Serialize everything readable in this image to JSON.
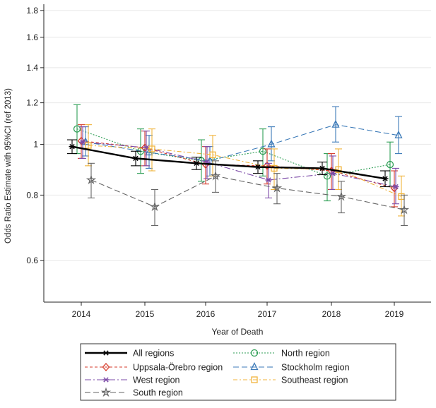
{
  "chart_data": {
    "type": "line",
    "title": "",
    "xlabel": "Year of Death",
    "ylabel": "Odds Ratio Estimate with 95%CI (ref 2013)",
    "x": [
      "2014",
      "2015",
      "2016",
      "2017",
      "2018",
      "2019"
    ],
    "ylim": [
      0.5,
      1.85
    ],
    "yscale": "log",
    "yticks": [
      "0.6",
      "0.8",
      "1",
      "1.2",
      "1.4",
      "1.6",
      "1.8"
    ],
    "grid": "horizontal",
    "legend_position": "bottom",
    "series": [
      {
        "name": "All regions",
        "color": "#000000",
        "dash": "solid",
        "marker": "asterisk",
        "values": [
          0.99,
          0.94,
          0.92,
          0.905,
          0.9,
          0.86
        ],
        "ci_low": [
          0.96,
          0.91,
          0.895,
          0.88,
          0.875,
          0.83
        ],
        "ci_high": [
          1.02,
          0.97,
          0.945,
          0.93,
          0.925,
          0.89
        ]
      },
      {
        "name": "North region",
        "color": "#2e9e55",
        "dash": "dot",
        "marker": "circle",
        "values": [
          1.07,
          0.97,
          0.93,
          0.97,
          0.87,
          0.915
        ],
        "ci_low": [
          0.96,
          0.88,
          0.85,
          0.87,
          0.78,
          0.83
        ],
        "ci_high": [
          1.19,
          1.07,
          1.02,
          1.07,
          0.96,
          1.01
        ]
      },
      {
        "name": "Uppsala-Örebro region",
        "color": "#d63a2a",
        "dash": "dash",
        "marker": "diamond",
        "values": [
          1.015,
          0.985,
          0.915,
          0.91,
          0.89,
          0.825
        ],
        "ci_low": [
          0.94,
          0.91,
          0.84,
          0.84,
          0.82,
          0.76
        ],
        "ci_high": [
          1.09,
          1.06,
          0.99,
          0.98,
          0.96,
          0.89
        ]
      },
      {
        "name": "Stockholm region",
        "color": "#3c7ab8",
        "dash": "longdash",
        "marker": "triangle",
        "values": [
          1.01,
          0.965,
          0.93,
          1.0,
          1.09,
          1.04
        ],
        "ci_low": [
          0.95,
          0.9,
          0.87,
          0.93,
          1.01,
          0.96
        ],
        "ci_high": [
          1.08,
          1.04,
          0.99,
          1.08,
          1.18,
          1.13
        ]
      },
      {
        "name": "West region",
        "color": "#7d4ca8",
        "dash": "longdashdot",
        "marker": "asterisk",
        "values": [
          1.01,
          0.985,
          0.925,
          0.855,
          0.88,
          0.83
        ],
        "ci_low": [
          0.94,
          0.91,
          0.86,
          0.79,
          0.82,
          0.77
        ],
        "ci_high": [
          1.08,
          1.06,
          0.99,
          0.92,
          0.95,
          0.9
        ]
      },
      {
        "name": "Southeast region",
        "color": "#f0b43c",
        "dash": "dashdot",
        "marker": "square",
        "values": [
          0.995,
          0.98,
          0.955,
          0.9,
          0.895,
          0.795
        ],
        "ci_low": [
          0.91,
          0.89,
          0.87,
          0.82,
          0.82,
          0.73
        ],
        "ci_high": [
          1.09,
          1.07,
          1.04,
          0.98,
          0.98,
          0.87
        ]
      },
      {
        "name": "South region",
        "color": "#666666",
        "dash": "longdash",
        "marker": "star",
        "values": [
          0.855,
          0.76,
          0.87,
          0.825,
          0.795,
          0.75
        ],
        "ci_low": [
          0.79,
          0.7,
          0.81,
          0.77,
          0.74,
          0.7
        ],
        "ci_high": [
          0.92,
          0.82,
          0.93,
          0.88,
          0.85,
          0.8
        ]
      }
    ],
    "legend_order": [
      "All regions",
      "North region",
      "Uppsala-Örebro region",
      "Stockholm region",
      "West region",
      "Southeast region",
      "South region"
    ]
  }
}
